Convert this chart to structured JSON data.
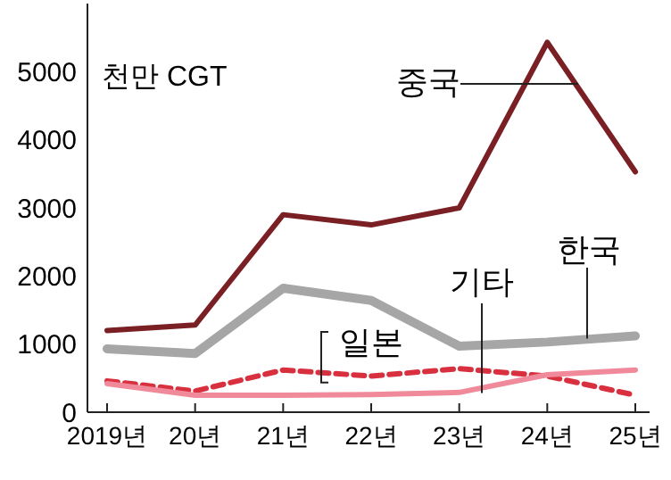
{
  "chart_data": {
    "type": "line",
    "ylabel": "천만 CGT",
    "categories": [
      "2019년",
      "20년",
      "21년",
      "22년",
      "23년",
      "24년",
      "25년"
    ],
    "ylim": [
      0,
      6000
    ],
    "yticks": [
      0,
      1000,
      2000,
      3000,
      4000,
      5000
    ],
    "grid": false,
    "line_style": "solid",
    "series": [
      {
        "name": "중국",
        "color": "#7a1f24",
        "values": [
          1200,
          1280,
          2900,
          2750,
          3000,
          5430,
          3530
        ]
      },
      {
        "name": "한국",
        "color": "#a6a6a6",
        "values": [
          930,
          860,
          1820,
          1640,
          970,
          1030,
          1120
        ]
      },
      {
        "name": "일본",
        "color": "#d9303f",
        "line_style": "dashed",
        "values": [
          460,
          310,
          620,
          530,
          640,
          530,
          250
        ]
      },
      {
        "name": "기타",
        "color": "#f08a9a",
        "values": [
          420,
          250,
          250,
          260,
          290,
          550,
          620
        ]
      }
    ]
  }
}
